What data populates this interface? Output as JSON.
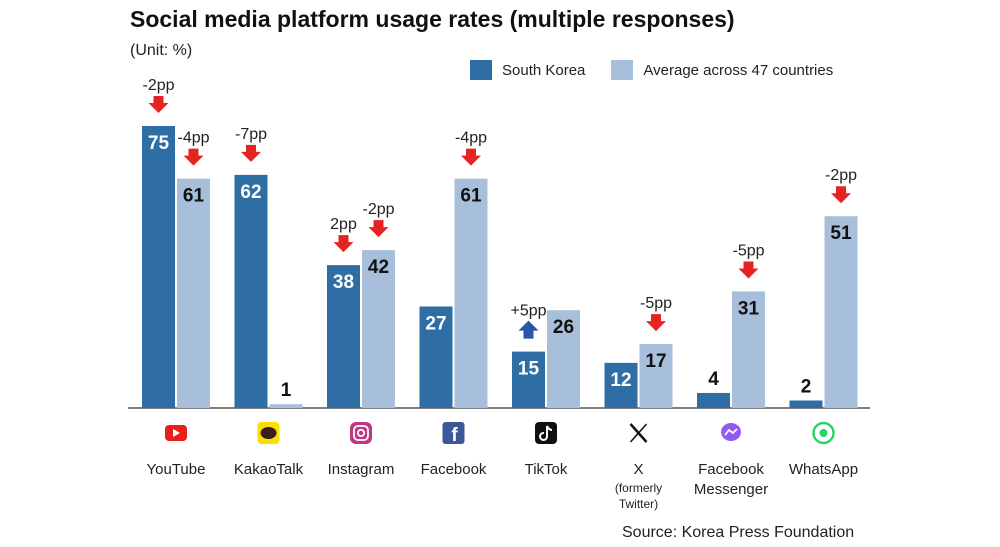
{
  "chart_data": {
    "type": "bar",
    "title": "Social media platform usage rates (multiple responses)",
    "unit_note": "(Unit: %)",
    "source": "Source: Korea Press Foundation",
    "categories": [
      "YouTube",
      "KakaoTalk",
      "Instagram",
      "Facebook",
      "TikTok",
      "X",
      "Facebook Messenger",
      "WhatsApp"
    ],
    "category_sublabels": [
      "",
      "",
      "",
      "",
      "",
      "(formerly Twitter)",
      "",
      ""
    ],
    "icons": [
      "youtube-icon",
      "kakaotalk-icon",
      "instagram-icon",
      "facebook-icon",
      "tiktok-icon",
      "x-icon",
      "messenger-icon",
      "whatsapp-icon"
    ],
    "series": [
      {
        "name": "South Korea",
        "color": "#2f6ea5",
        "values": [
          75,
          62,
          38,
          27,
          15,
          12,
          4,
          2
        ],
        "changes": [
          "-2pp",
          "-7pp",
          "2pp",
          "",
          "+5pp",
          "",
          "",
          ""
        ],
        "change_direction": [
          "down",
          "down",
          "down",
          "",
          "up",
          "",
          "",
          ""
        ]
      },
      {
        "name": "Average across 47 countries",
        "color": "#a7bfdb",
        "values": [
          61,
          1,
          42,
          61,
          26,
          17,
          31,
          51
        ],
        "changes": [
          "-4pp",
          "",
          "-2pp",
          "-4pp",
          "",
          "-5pp",
          "-5pp",
          "-2pp"
        ],
        "change_direction": [
          "down",
          "",
          "down",
          "down",
          "",
          "down",
          "down",
          "down"
        ]
      }
    ],
    "ylim": [
      0,
      75
    ],
    "grid": false,
    "legend_position": "top-right",
    "arrow_colors": {
      "down": "#e52421",
      "up": "#2b55a8"
    }
  }
}
